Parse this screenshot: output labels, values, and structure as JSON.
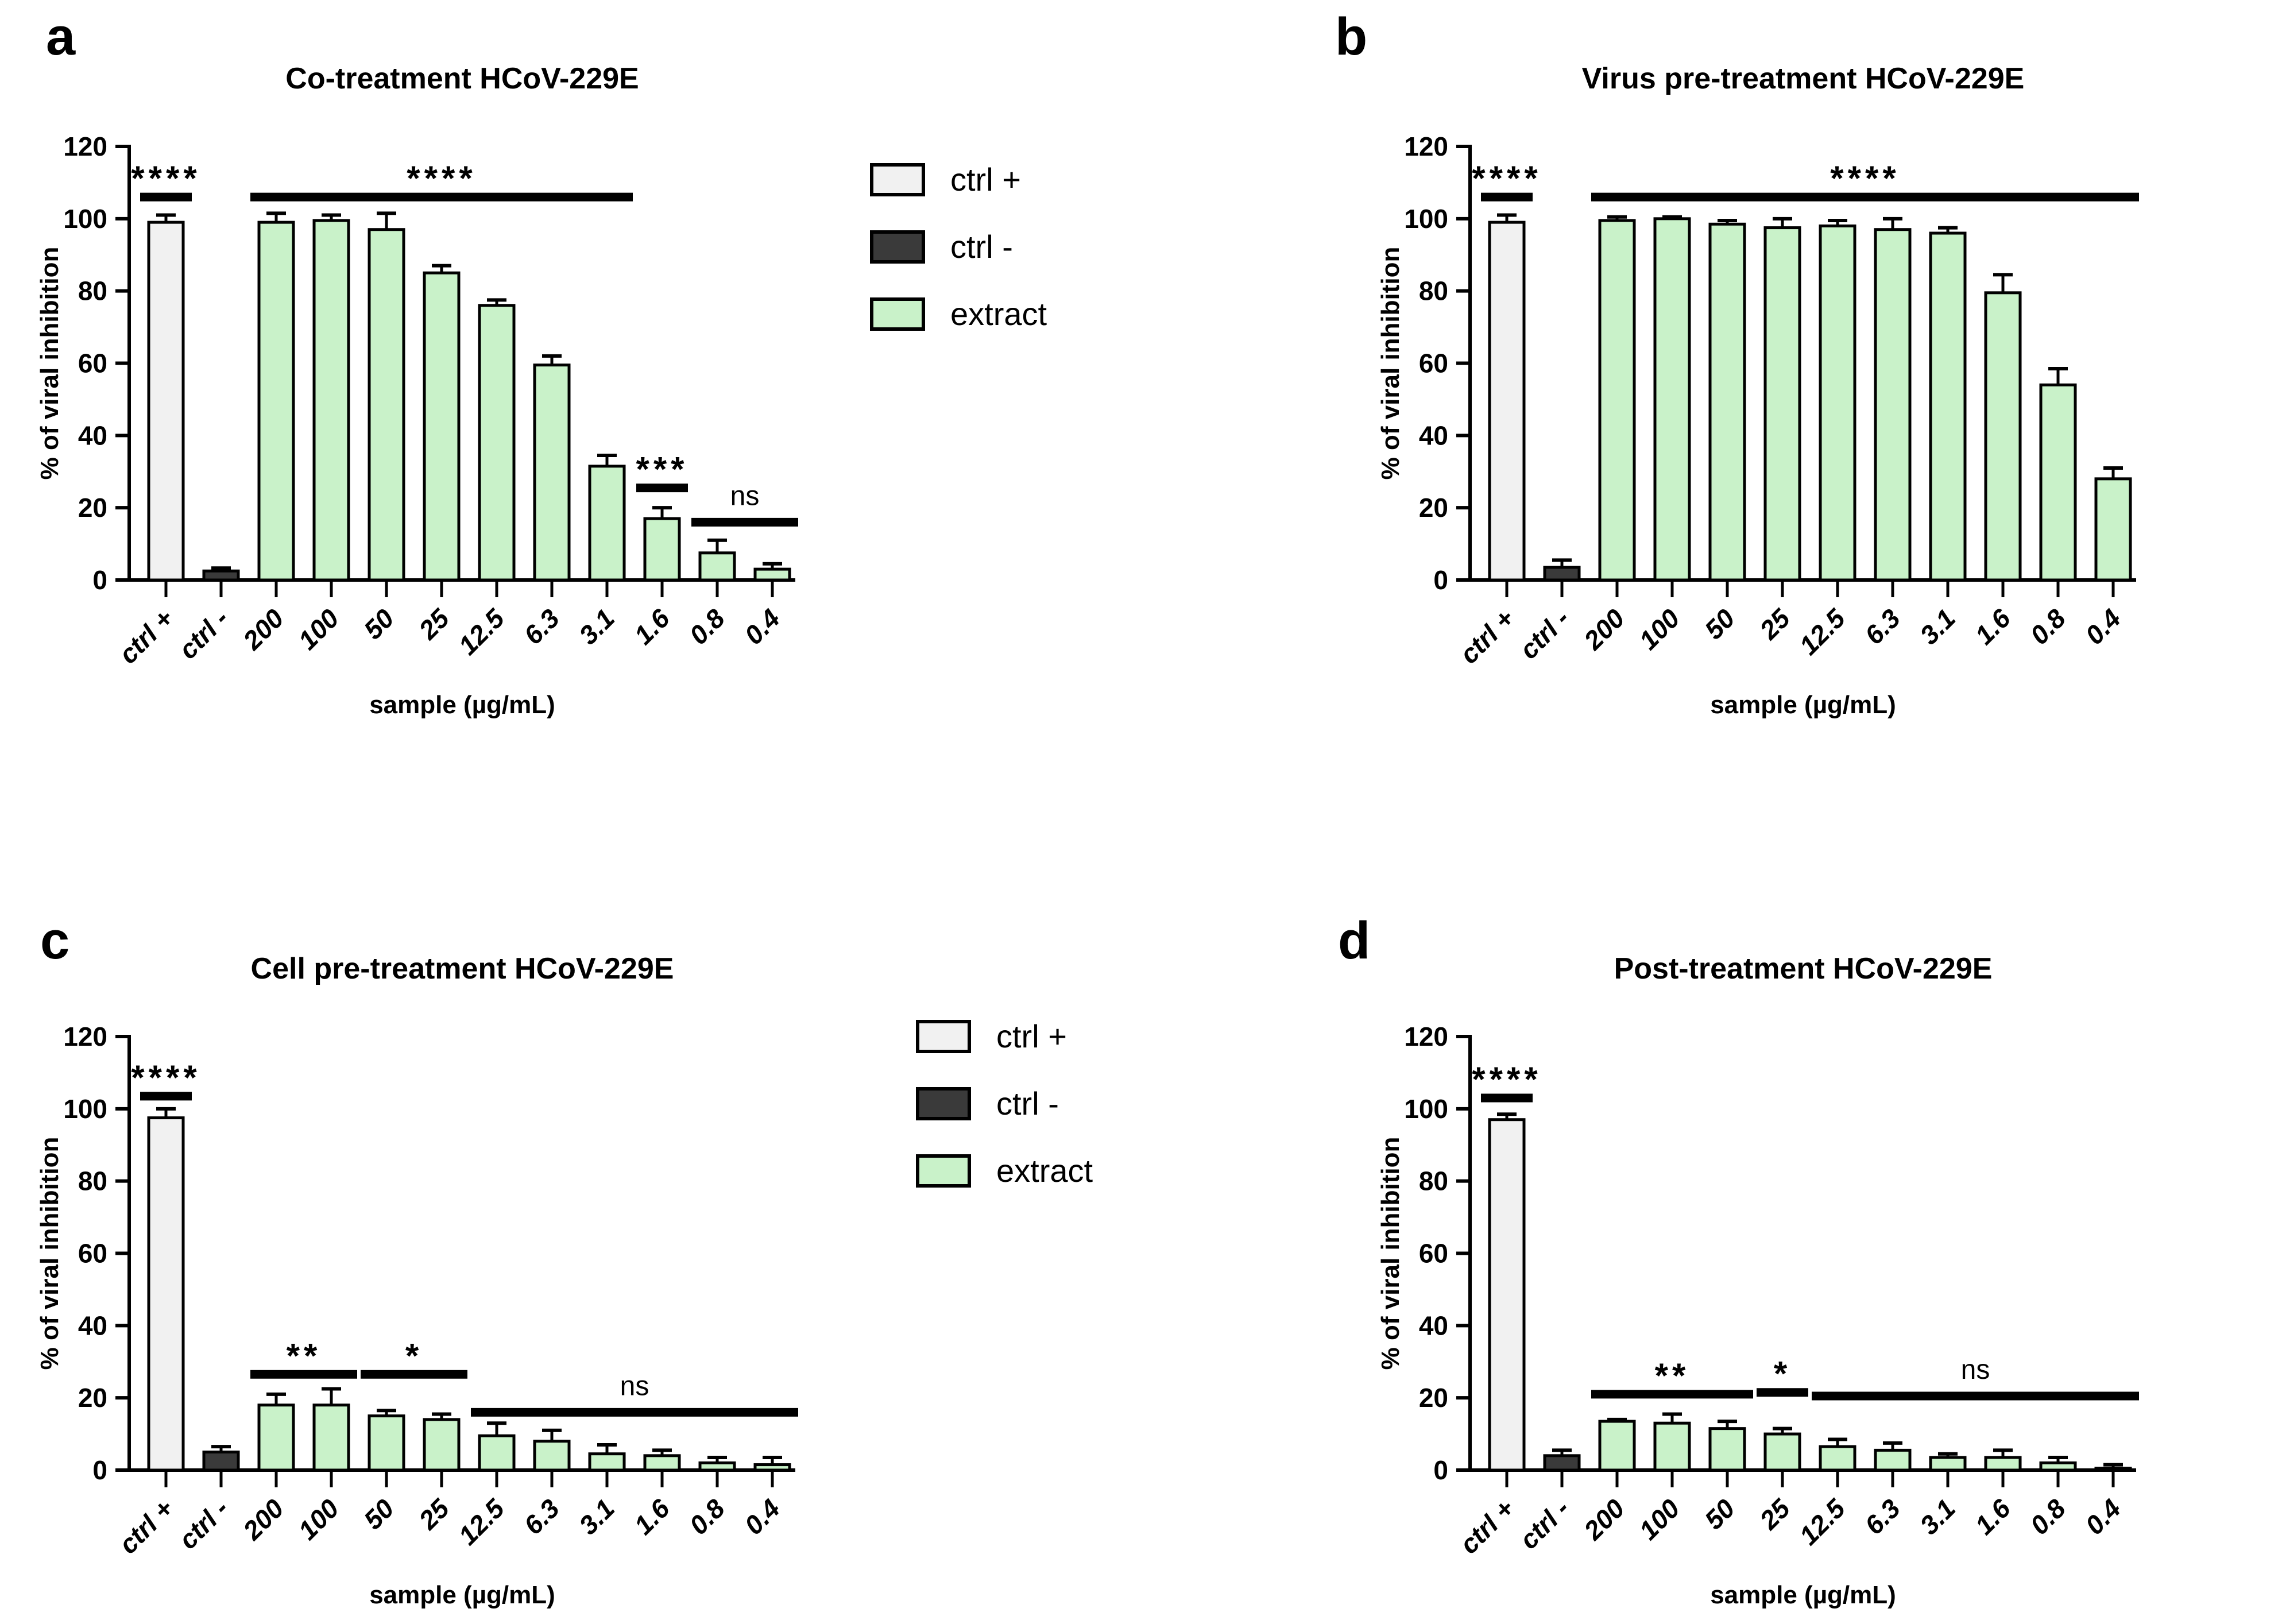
{
  "colors": {
    "ctrl_plus": "#f1f1f1",
    "ctrl_minus": "#3a3a3a",
    "extract": "#c9f2c9",
    "bar_border": "#000000"
  },
  "bar_groups": [
    "ctrl_plus",
    "ctrl_minus",
    "extract",
    "extract",
    "extract",
    "extract",
    "extract",
    "extract",
    "extract",
    "extract",
    "extract",
    "extract"
  ],
  "legend": {
    "entries": [
      {
        "label": "ctrl +",
        "color_key": "ctrl_plus"
      },
      {
        "label": "ctrl -",
        "color_key": "ctrl_minus"
      },
      {
        "label": "extract",
        "color_key": "extract"
      }
    ]
  },
  "chart_data": [
    {
      "type": "bar",
      "panel": "a",
      "title": "Co-treatment HCoV-229E",
      "xlabel": "sample (µg/mL)",
      "ylabel": "% of viral inhibition",
      "ylim": [
        0,
        120
      ],
      "yticks": [
        0,
        20,
        40,
        60,
        80,
        100,
        120
      ],
      "categories": [
        "ctrl +",
        "ctrl -",
        "200",
        "100",
        "50",
        "25",
        "12.5",
        "6.3",
        "3.1",
        "1.6",
        "0.8",
        "0.4"
      ],
      "values": [
        99,
        2.5,
        99,
        99.5,
        97,
        85,
        76,
        59.5,
        31.5,
        17,
        7.5,
        3
      ],
      "errors": [
        2,
        0.8,
        2.5,
        1.5,
        4.5,
        2,
        1.5,
        2.5,
        3,
        3,
        3.5,
        1.5
      ],
      "annotations": [
        {
          "text": "****",
          "from": 0,
          "to": 0,
          "y": 106
        },
        {
          "text": "****",
          "from": 2,
          "to": 8,
          "y": 106
        },
        {
          "text": "***",
          "from": 9,
          "to": 9,
          "y": 25.5
        },
        {
          "text": "ns",
          "from": 10,
          "to": 11,
          "y": 16
        }
      ]
    },
    {
      "type": "bar",
      "panel": "b",
      "title": "Virus pre-treatment HCoV-229E",
      "xlabel": "sample (µg/mL)",
      "ylabel": "% of viral inhibition",
      "ylim": [
        0,
        120
      ],
      "yticks": [
        0,
        20,
        40,
        60,
        80,
        100,
        120
      ],
      "categories": [
        "ctrl +",
        "ctrl -",
        "200",
        "100",
        "50",
        "25",
        "12.5",
        "6.3",
        "3.1",
        "1.6",
        "0.8",
        "0.4"
      ],
      "values": [
        99,
        3.5,
        99.5,
        100,
        98.5,
        97.5,
        98,
        97,
        96,
        79.5,
        54,
        28
      ],
      "errors": [
        2,
        2,
        1,
        0.5,
        1,
        2.5,
        1.5,
        3,
        1.5,
        5,
        4.5,
        3
      ],
      "annotations": [
        {
          "text": "****",
          "from": 0,
          "to": 0,
          "y": 106
        },
        {
          "text": "****",
          "from": 2,
          "to": 11,
          "y": 106
        }
      ]
    },
    {
      "type": "bar",
      "panel": "c",
      "title": "Cell pre-treatment HCoV-229E",
      "xlabel": "sample (µg/mL)",
      "ylabel": "% of viral inhibition",
      "ylim": [
        0,
        120
      ],
      "yticks": [
        0,
        20,
        40,
        60,
        80,
        100,
        120
      ],
      "categories": [
        "ctrl +",
        "ctrl -",
        "200",
        "100",
        "50",
        "25",
        "12.5",
        "6.3",
        "3.1",
        "1.6",
        "0.8",
        "0.4"
      ],
      "values": [
        97.5,
        5,
        18,
        18,
        15,
        14,
        9.5,
        8,
        4.5,
        4,
        2,
        1.5
      ],
      "errors": [
        2.5,
        1.5,
        3,
        4.5,
        1.5,
        1.5,
        3.5,
        3,
        2.5,
        1.5,
        1.5,
        2
      ],
      "annotations": [
        {
          "text": "****",
          "from": 0,
          "to": 0,
          "y": 103.5
        },
        {
          "text": "**",
          "from": 2,
          "to": 3,
          "y": 26.5
        },
        {
          "text": "*",
          "from": 4,
          "to": 5,
          "y": 26.5
        },
        {
          "text": "ns",
          "from": 6,
          "to": 11,
          "y": 16
        }
      ]
    },
    {
      "type": "bar",
      "panel": "d",
      "title": "Post-treatment HCoV-229E",
      "xlabel": "sample (µg/mL)",
      "ylabel": "% of viral inhibition",
      "ylim": [
        0,
        120
      ],
      "yticks": [
        0,
        20,
        40,
        60,
        80,
        100,
        120
      ],
      "categories": [
        "ctrl +",
        "ctrl -",
        "200",
        "100",
        "50",
        "25",
        "12.5",
        "6.3",
        "3.1",
        "1.6",
        "0.8",
        "0.4"
      ],
      "values": [
        97,
        4,
        13.5,
        13,
        11.5,
        10,
        6.5,
        5.5,
        3.5,
        3.5,
        2,
        0.5
      ],
      "errors": [
        1.5,
        1.5,
        0.5,
        2.5,
        2,
        1.5,
        2,
        2,
        1,
        2,
        1.5,
        1
      ],
      "annotations": [
        {
          "text": "****",
          "from": 0,
          "to": 0,
          "y": 103
        },
        {
          "text": "**",
          "from": 2,
          "to": 4,
          "y": 21
        },
        {
          "text": "*",
          "from": 5,
          "to": 5,
          "y": 21.5
        },
        {
          "text": "ns",
          "from": 6,
          "to": 11,
          "y": 20.5
        }
      ]
    }
  ]
}
